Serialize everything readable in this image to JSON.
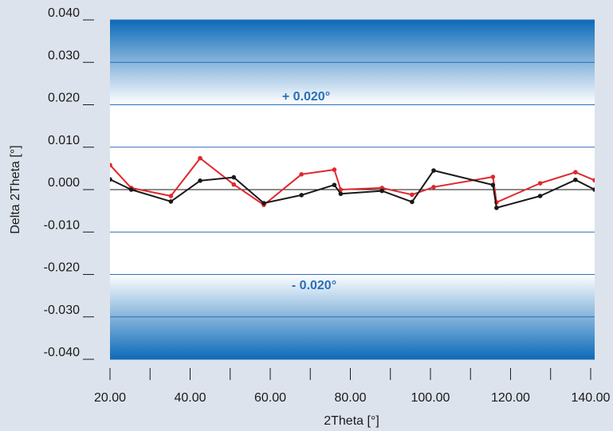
{
  "chart_data": {
    "type": "line",
    "title": "",
    "xlabel": "2Theta [°]",
    "ylabel": "Delta 2Theta [°]",
    "xlim": [
      20,
      141
    ],
    "ylim": [
      -0.04,
      0.04
    ],
    "x_ticks": [
      20,
      30,
      40,
      50,
      60,
      70,
      80,
      90,
      100,
      110,
      120,
      130,
      140
    ],
    "x_tick_labels": [
      "20.00",
      "40.00",
      "60.00",
      "80.00",
      "100.00",
      "120.00",
      "140.00"
    ],
    "x_tick_label_values": [
      20,
      40,
      60,
      80,
      100,
      120,
      140
    ],
    "y_ticks": [
      -0.04,
      -0.03,
      -0.02,
      -0.01,
      0,
      0.01,
      0.02,
      0.03,
      0.04
    ],
    "y_tick_labels": [
      "-0.040",
      "-0.030",
      "-0.020",
      "-0.010",
      "0.000",
      "0.010",
      "0.020",
      "0.030",
      "0.040"
    ],
    "tolerance_band": {
      "upper": 0.02,
      "lower": -0.02,
      "upper_label": "+ 0.020°",
      "lower_label": "- 0.020°"
    },
    "grid": true,
    "series": [
      {
        "color": "#e0282d",
        "x": [
          20.0,
          25.3,
          35.2,
          42.5,
          50.9,
          58.4,
          67.8,
          76.0,
          77.6,
          87.9,
          95.4,
          100.8,
          115.6,
          116.5,
          127.4,
          136.2,
          141.0
        ],
        "y": [
          0.0058,
          0.0004,
          -0.0015,
          0.0074,
          0.0012,
          -0.0036,
          0.0036,
          0.0047,
          0.0,
          0.0004,
          -0.0012,
          0.0006,
          0.003,
          -0.003,
          0.0015,
          0.0041,
          0.0022
        ]
      },
      {
        "color": "#1a1a1a",
        "x": [
          20.0,
          25.3,
          35.2,
          42.5,
          50.9,
          58.4,
          67.8,
          76.0,
          77.6,
          87.9,
          95.4,
          100.8,
          115.6,
          116.5,
          127.4,
          136.2,
          141.0
        ],
        "y": [
          0.0024,
          0.0,
          -0.0028,
          0.0021,
          0.0029,
          -0.0032,
          -0.0013,
          0.0011,
          -0.001,
          -0.0003,
          -0.0029,
          0.0045,
          0.0011,
          -0.0043,
          -0.0015,
          0.0023,
          0.0
        ]
      }
    ]
  }
}
